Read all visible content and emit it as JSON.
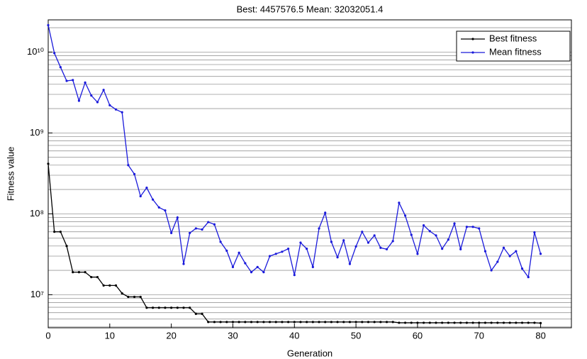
{
  "chart_data": {
    "type": "line",
    "title": "Best: 4457576.5 Mean: 32032051.4",
    "x_label": "Generation",
    "y_label": "Fitness value",
    "x": [
      0,
      1,
      2,
      3,
      4,
      5,
      6,
      7,
      8,
      9,
      10,
      11,
      12,
      13,
      14,
      15,
      16,
      17,
      18,
      19,
      20,
      21,
      22,
      23,
      24,
      25,
      26,
      27,
      28,
      29,
      30,
      31,
      32,
      33,
      34,
      35,
      36,
      37,
      38,
      39,
      40,
      41,
      42,
      43,
      44,
      45,
      46,
      47,
      48,
      49,
      50,
      51,
      52,
      53,
      54,
      55,
      56,
      57,
      58,
      59,
      60,
      61,
      62,
      63,
      64,
      65,
      66,
      67,
      68,
      69,
      70,
      71,
      72,
      73,
      74,
      75,
      76,
      77,
      78,
      79,
      80
    ],
    "series": [
      {
        "name": "Best fitness",
        "color": "#000000",
        "values": [
          416000000,
          60000000,
          60000000,
          40000000,
          19000000,
          19000000,
          19000000,
          16500000,
          16500000,
          13000000,
          13000000,
          13000000,
          10400000,
          9400000,
          9400000,
          9400000,
          6900000,
          6900000,
          6900000,
          6900000,
          6900000,
          6900000,
          6900000,
          6900000,
          5800000,
          5800000,
          4600000,
          4600000,
          4600000,
          4600000,
          4600000,
          4600000,
          4600000,
          4600000,
          4600000,
          4600000,
          4600000,
          4600000,
          4600000,
          4600000,
          4600000,
          4600000,
          4600000,
          4600000,
          4600000,
          4600000,
          4600000,
          4600000,
          4600000,
          4600000,
          4600000,
          4600000,
          4600000,
          4600000,
          4600000,
          4600000,
          4600000,
          4500000,
          4500000,
          4500000,
          4500000,
          4500000,
          4500000,
          4500000,
          4500000,
          4500000,
          4500000,
          4500000,
          4500000,
          4500000,
          4500000,
          4500000,
          4500000,
          4500000,
          4500000,
          4500000,
          4500000,
          4500000,
          4500000,
          4500000,
          4457576.5
        ]
      },
      {
        "name": "Mean fitness",
        "color": "#1a1adb",
        "values": [
          21500000000,
          9700000000,
          6500000000,
          4400000000,
          4500000000,
          2500000000,
          4200000000,
          2900000000,
          2400000000,
          3400000000,
          2200000000,
          1950000000,
          1800000000,
          400000000,
          310000000,
          165000000,
          210000000,
          150000000,
          120000000,
          110000000,
          58000000,
          90000000,
          24000000,
          58000000,
          66000000,
          64000000,
          79000000,
          74000000,
          45000000,
          35000000,
          22000000,
          33000000,
          24500000,
          19000000,
          22000000,
          19000000,
          30000000,
          32000000,
          34000000,
          37000000,
          17500000,
          44000000,
          37000000,
          22000000,
          66000000,
          103000000,
          45000000,
          29000000,
          47000000,
          24000000,
          39500000,
          60000000,
          44000000,
          54000000,
          38000000,
          36500000,
          46000000,
          137000000,
          95000000,
          55000000,
          32000000,
          72000000,
          61000000,
          54000000,
          37000000,
          48000000,
          76000000,
          36500000,
          69000000,
          69000000,
          66000000,
          34500000,
          20000000,
          25500000,
          38000000,
          30000000,
          34500000,
          21000000,
          16500000,
          59000000,
          32032051.4
        ]
      }
    ],
    "xlim": [
      0,
      85
    ],
    "xticks": [
      0,
      10,
      20,
      30,
      40,
      50,
      60,
      70,
      80
    ],
    "ylim": [
      3900000,
      25000000000
    ],
    "log_y": true,
    "yticks": [
      {
        "value": 10000000,
        "label": "10⁷"
      },
      {
        "value": 100000000,
        "label": "10⁸"
      },
      {
        "value": 1000000000,
        "label": "10⁹"
      },
      {
        "value": 10000000000,
        "label": "10¹⁰"
      }
    ],
    "y_minor_ticks": [
      4000000,
      5000000,
      6000000,
      7000000,
      8000000,
      9000000,
      20000000,
      30000000,
      40000000,
      50000000,
      60000000,
      70000000,
      80000000,
      90000000,
      200000000,
      300000000,
      400000000,
      500000000,
      600000000,
      700000000,
      800000000,
      900000000,
      2000000000,
      3000000000,
      4000000000,
      5000000000,
      6000000000,
      7000000000,
      8000000000,
      9000000000,
      20000000000
    ],
    "grid": true,
    "legend": "upper right"
  }
}
